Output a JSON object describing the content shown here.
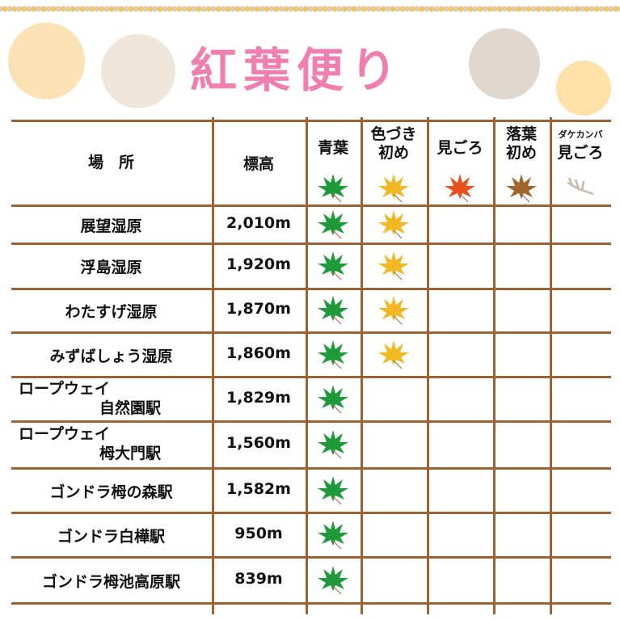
{
  "title": "紅葉便り",
  "headers": {
    "place": "場　所",
    "elevation": "標高",
    "stages": [
      {
        "label": "青葉",
        "icon": "green-maple-leaf",
        "color": "#1f9a3a"
      },
      {
        "label": "色づき\n初め",
        "icon": "yellow-maple-leaf",
        "color": "#f2b824"
      },
      {
        "label": "見ごろ",
        "icon": "red-maple-leaf",
        "color": "#e8501e"
      },
      {
        "label": "落葉\n初め",
        "icon": "brown-maple-leaf",
        "color": "#a0652a"
      },
      {
        "label_small": "ダケカンバ",
        "label": "見ごろ",
        "icon": "bare-branch",
        "color": "#c9b8a6"
      }
    ]
  },
  "rows": [
    {
      "place": "展望湿原",
      "elevation": "2,010m",
      "stages": [
        1,
        1,
        0,
        0,
        0
      ]
    },
    {
      "place": "浮島湿原",
      "elevation": "1,920m",
      "stages": [
        1,
        1,
        0,
        0,
        0
      ]
    },
    {
      "place": "わたすげ湿原",
      "elevation": "1,870m",
      "stages": [
        1,
        1,
        0,
        0,
        0
      ]
    },
    {
      "place": "みずばしょう湿原",
      "elevation": "1,860m",
      "stages": [
        1,
        1,
        0,
        0,
        0
      ]
    },
    {
      "place": "ロープウェイ\n自然園駅",
      "elevation": "1,829m",
      "stages": [
        1,
        0,
        0,
        0,
        0
      ]
    },
    {
      "place": "ロープウェイ\n栂大門駅",
      "elevation": "1,560m",
      "stages": [
        1,
        0,
        0,
        0,
        0
      ]
    },
    {
      "place": "ゴンドラ栂の森駅",
      "elevation": "1,582m",
      "stages": [
        1,
        0,
        0,
        0,
        0
      ]
    },
    {
      "place": "ゴンドラ白樺駅",
      "elevation": "950m",
      "stages": [
        1,
        0,
        0,
        0,
        0
      ]
    },
    {
      "place": "ゴンドラ栂池高原駅",
      "elevation": "839m",
      "stages": [
        1,
        0,
        0,
        0,
        0
      ]
    }
  ]
}
